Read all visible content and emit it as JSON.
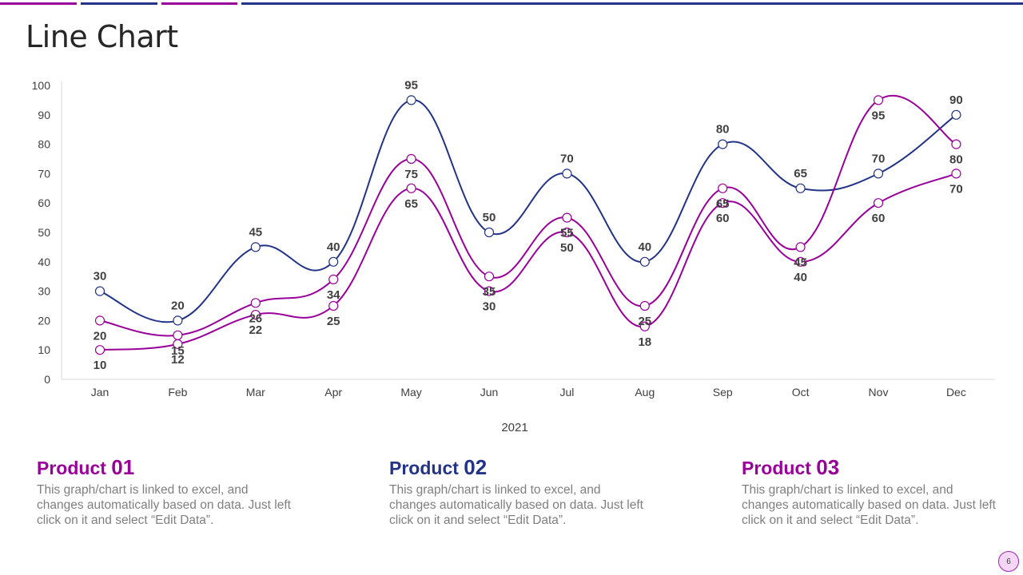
{
  "slide": {
    "title": "Line Chart",
    "page_number": "6"
  },
  "colors": {
    "magenta": "#990099",
    "navy": "#223388",
    "text": "#404040",
    "muted": "#7f7f7f"
  },
  "chart_data": {
    "type": "line",
    "title": "",
    "xlabel": "2021",
    "ylabel": "",
    "ylim": [
      0,
      100
    ],
    "yticks": [
      0,
      10,
      20,
      30,
      40,
      50,
      60,
      70,
      80,
      90,
      100
    ],
    "categories": [
      "Jan",
      "Feb",
      "Mar",
      "Apr",
      "May",
      "Jun",
      "Jul",
      "Aug",
      "Sep",
      "Oct",
      "Nov",
      "Dec"
    ],
    "series": [
      {
        "name": "Product 02",
        "color": "#223388",
        "values": [
          30,
          20,
          45,
          40,
          95,
          50,
          70,
          40,
          80,
          65,
          70,
          90
        ],
        "label_pos": "above"
      },
      {
        "name": "Product 01",
        "color": "#990099",
        "values": [
          20,
          15,
          26,
          34,
          75,
          35,
          55,
          25,
          65,
          45,
          95,
          80
        ],
        "label_pos": "below"
      },
      {
        "name": "Product 03",
        "color": "#990099",
        "values": [
          10,
          12,
          22,
          25,
          65,
          30,
          50,
          18,
          60,
          40,
          60,
          70
        ],
        "label_pos": "below"
      }
    ]
  },
  "products": [
    {
      "label": "Product",
      "number": "01",
      "color": "#990099",
      "text": "This graph/chart is linked to excel, and changes automatically based on data. Just left click on it and select “Edit Data”."
    },
    {
      "label": "Product",
      "number": "02",
      "color": "#223388",
      "text": "This graph/chart is linked to excel, and changes automatically based on data. Just left click on it and select “Edit Data”."
    },
    {
      "label": "Product",
      "number": "03",
      "color": "#990099",
      "text": "This graph/chart is linked to excel, and changes automatically based on data. Just left click on it and select “Edit Data”."
    }
  ]
}
